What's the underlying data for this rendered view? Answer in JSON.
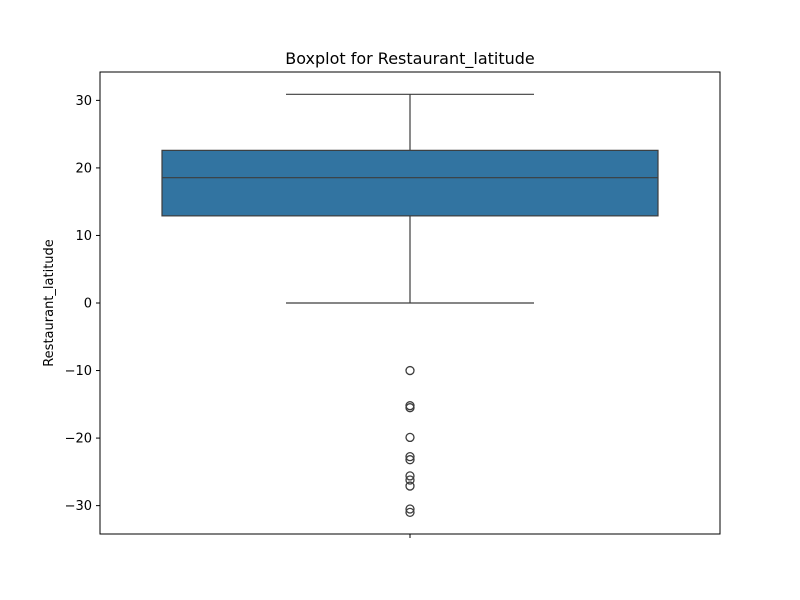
{
  "chart_data": {
    "type": "boxplot",
    "title": "Boxplot for Restaurant_latitude",
    "xlabel": "",
    "ylabel": "Restaurant_latitude",
    "ylim": [
      -34.2,
      34.2
    ],
    "yticks": [
      -30,
      -20,
      -10,
      0,
      10,
      20,
      30
    ],
    "ytick_labels": [
      "−30",
      "−20",
      "−10",
      "0",
      "10",
      "20",
      "30"
    ],
    "grid": false,
    "box": {
      "whisker_low": 0.0,
      "q1": 12.9,
      "median": 18.55,
      "q3": 22.6,
      "whisker_high": 30.9
    },
    "outliers": [
      -10.0,
      -15.2,
      -15.5,
      -19.9,
      -22.75,
      -23.2,
      -25.6,
      -26.2,
      -27.1,
      -30.5,
      -31.0
    ],
    "colors": {
      "box_fill": "#3274a1",
      "line": "#3d3d3d",
      "axis": "#000000"
    }
  }
}
